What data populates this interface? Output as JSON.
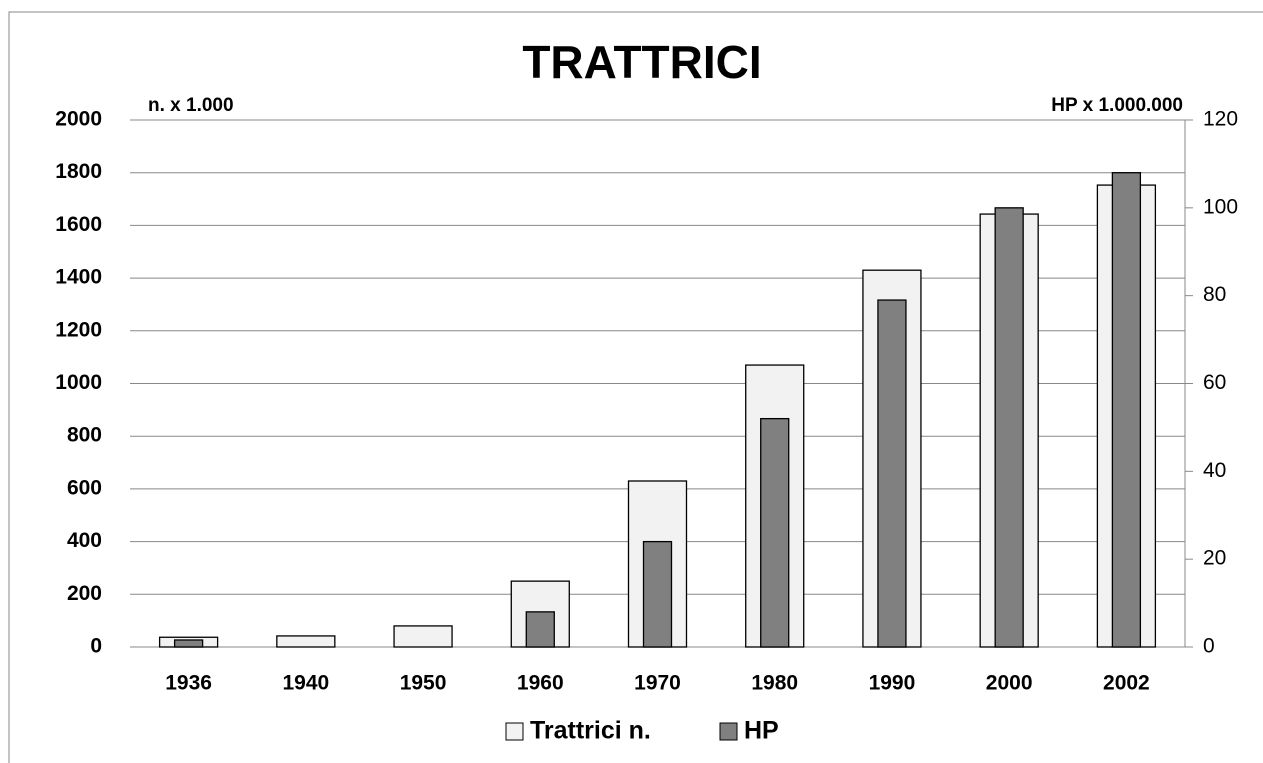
{
  "chart_data": {
    "type": "bar",
    "title": "TRATTRICI",
    "y_label": "n. x 1.000",
    "y2_label": "HP x 1.000.000",
    "categories": [
      "1936",
      "1940",
      "1950",
      "1960",
      "1970",
      "1980",
      "1990",
      "2000",
      "2002"
    ],
    "series": [
      {
        "name": "Trattrici n.",
        "color": "#f2f2f2",
        "values": [
          37,
          42,
          80,
          250,
          630,
          1070,
          1430,
          1643,
          1753
        ]
      },
      {
        "name": "HP",
        "color": "#808080",
        "axis": "y2",
        "values": [
          1.6,
          null,
          null,
          8,
          24,
          52,
          79,
          100,
          108
        ]
      }
    ],
    "ylim": [
      0,
      2000
    ],
    "yticks": [
      0,
      200,
      400,
      600,
      800,
      1000,
      1200,
      1400,
      1600,
      1800,
      2000
    ],
    "y2lim": [
      0,
      120
    ],
    "y2ticks": [
      0,
      20,
      40,
      60,
      80,
      100,
      120
    ],
    "grid": true,
    "legend": "bottom"
  }
}
